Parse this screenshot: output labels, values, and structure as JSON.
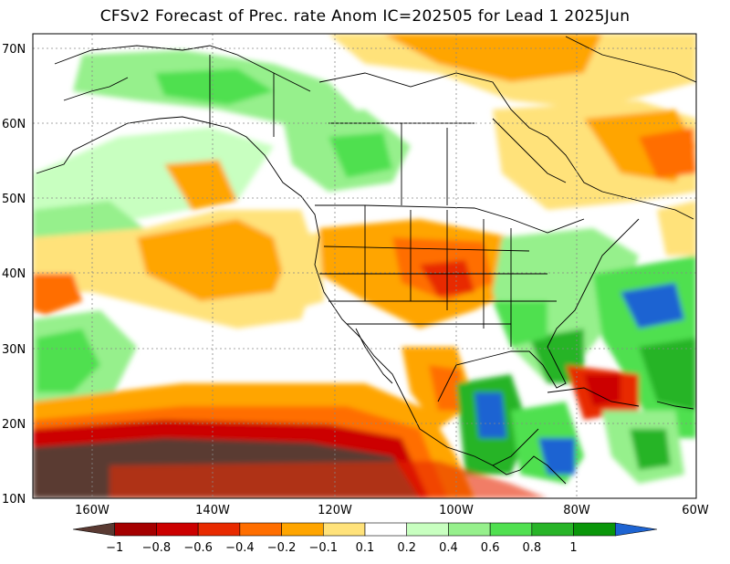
{
  "title": "CFSv2 Forecast of Prec. rate Anom IC=202505 for Lead 1 2025Jun",
  "lat_labels": [
    "70N",
    "60N",
    "50N",
    "40N",
    "30N",
    "20N",
    "10N"
  ],
  "lon_labels": [
    "160W",
    "140W",
    "120W",
    "100W",
    "80W",
    "60W"
  ],
  "colorbar": {
    "ticks": [
      "−1",
      "−0.8",
      "−0.6",
      "−0.4",
      "−0.2",
      "−0.1",
      "0.1",
      "0.2",
      "0.4",
      "0.6",
      "0.8",
      "1"
    ],
    "colors": [
      "#5a3a32",
      "#a50000",
      "#cc0000",
      "#e82a00",
      "#ff6e00",
      "#ffa500",
      "#ffe27a",
      "#ffffff",
      "#c8ffc0",
      "#96f08c",
      "#50e050",
      "#28b428",
      "#0a960a",
      "#1e64d2"
    ]
  }
}
